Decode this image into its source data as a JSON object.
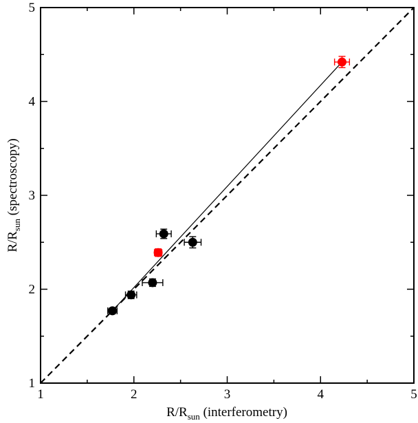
{
  "chart_data": {
    "type": "scatter",
    "title": "",
    "xlabel": {
      "main": "R/R",
      "sub": "sun",
      "rest": " (interferometry)"
    },
    "ylabel": {
      "main": "R/R",
      "sub": "sun",
      "rest": " (spectroscopy)"
    },
    "xlim": [
      1,
      5
    ],
    "ylim": [
      1,
      5
    ],
    "xticks": [
      "1",
      "2",
      "3",
      "4",
      "5"
    ],
    "yticks": [
      "1",
      "2",
      "3",
      "4",
      "5"
    ],
    "grid": false,
    "legend": "none",
    "points": [
      {
        "x": 1.77,
        "y": 1.77,
        "xerr": 0.05,
        "yerr": 0.03,
        "color": "#000000"
      },
      {
        "x": 1.97,
        "y": 1.94,
        "xerr": 0.06,
        "yerr": 0.04,
        "color": "#000000"
      },
      {
        "x": 2.2,
        "y": 2.07,
        "xerr": 0.11,
        "yerr": 0.04,
        "color": "#000000"
      },
      {
        "x": 2.26,
        "y": 2.39,
        "xerr": 0.04,
        "yerr": 0.04,
        "color": "#ff0000"
      },
      {
        "x": 2.32,
        "y": 2.59,
        "xerr": 0.08,
        "yerr": 0.05,
        "color": "#000000"
      },
      {
        "x": 2.63,
        "y": 2.5,
        "xerr": 0.09,
        "yerr": 0.06,
        "color": "#000000"
      },
      {
        "x": 4.23,
        "y": 4.42,
        "xerr": 0.08,
        "yerr": 0.06,
        "color": "#ff0000"
      }
    ],
    "lines": [
      {
        "style": "dashed",
        "x": [
          1,
          5
        ],
        "y": [
          1,
          5
        ]
      },
      {
        "style": "solid",
        "x": [
          1.77,
          4.23
        ],
        "y": [
          1.77,
          4.42
        ]
      }
    ]
  }
}
